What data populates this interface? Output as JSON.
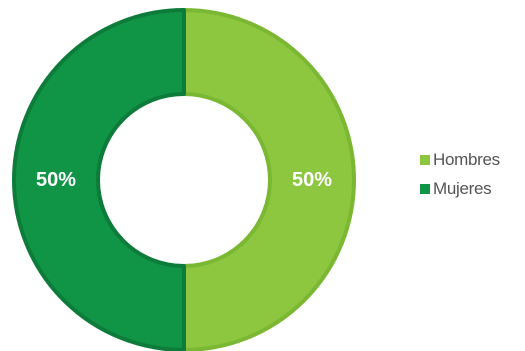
{
  "chart_data": {
    "type": "pie",
    "style": "donut",
    "categories": [
      "Hombres",
      "Mujeres"
    ],
    "values": [
      50,
      50
    ],
    "data_labels": [
      "50%",
      "50%"
    ],
    "colors": [
      "#8dc63f",
      "#109446"
    ],
    "border_colors": [
      "#7ab833",
      "#0d7c3a"
    ],
    "legend": {
      "position": "right",
      "entries": [
        "Hombres",
        "Mujeres"
      ]
    }
  }
}
